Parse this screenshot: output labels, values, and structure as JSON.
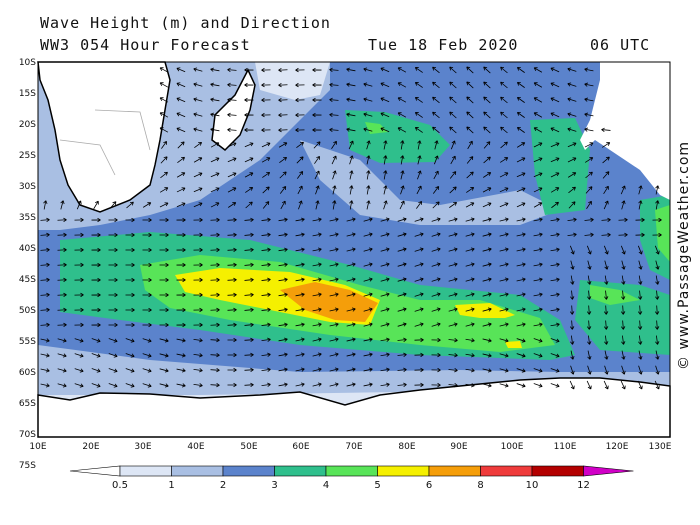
{
  "header": {
    "title_line1": "Wave Height (m) and Direction",
    "title_line2": "WW3 054 Hour Forecast",
    "date": "Tue 18 Feb 2020",
    "time": "06 UTC"
  },
  "credit": "© www.PassageWeather.com",
  "axes": {
    "lat_labels": [
      "10S",
      "15S",
      "20S",
      "25S",
      "30S",
      "35S",
      "40S",
      "45S",
      "50S",
      "55S",
      "60S",
      "65S",
      "70S",
      "75S"
    ],
    "lon_labels": [
      "10E",
      "20E",
      "30E",
      "40E",
      "50E",
      "60E",
      "70E",
      "80E",
      "90E",
      "100E",
      "110E",
      "120E",
      "130E"
    ]
  },
  "legend": {
    "labels": [
      "0.5",
      "1",
      "2",
      "3",
      "4",
      "5",
      "6",
      "8",
      "10",
      "12"
    ],
    "colors": [
      "#ffffff",
      "#dde6f5",
      "#a9bfe3",
      "#5b83cc",
      "#2fbf8c",
      "#58e458",
      "#f5f000",
      "#f59e0a",
      "#ef3b3b",
      "#b30000",
      "#d100c7"
    ]
  }
}
